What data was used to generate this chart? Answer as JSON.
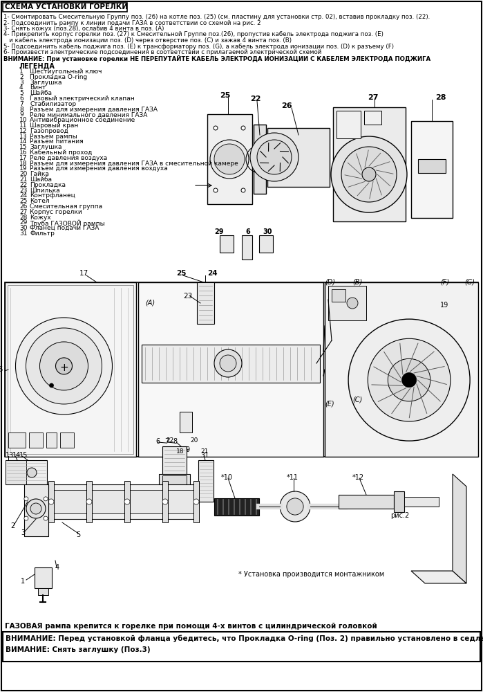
{
  "title_box": "СХЕМА УСТАНОВКИ ГОРЕЛКИ",
  "instructions": [
    "1- Смонтировать Смесительную Группу поз. (26) на котле поз. (25) (см. пластину для установки стр. 02), вставив прокладку поз. (22).",
    "2- Подсоединить рампу к линии подачи ГАЗА в соответствии со схемой на рис. 2",
    "3- Снять кожух (поз.28), ослабив 4 винта в поз. (А)",
    "4- Прикрепить корпус горелки поз. (27) к Смесительной Группе поз.(26), пропустив кабель электрода поджига поз. (Е)",
    "   и кабель электрода ионизации поз. (D) через отверстие поз. (С) и зажав 4 винта поз. (В)",
    "5- Подсоединить кабель поджига поз. (Е) к трансформатору поз. (G), а кабель электрода ионизации поз. (D) к разъему (F)",
    "6- Произвести электрические подсоединения в соответствии с прилагаемой электрической схемой",
    "ВНИМАНИЕ: При установке горелки НЕ ПЕРЕПУТАЙТЕ КАБЕЛЬ ЭЛЕКТРОДА ИОНИЗАЦИИ С КАБЕЛЕМ ЭЛЕКТРОДА ПОДЖИГА"
  ],
  "legend_title": "ЛЕГЕНДА",
  "legend_items": [
    [
      "1",
      "Шестиугольный ключ"
    ],
    [
      "2",
      "Прокладка O-ring"
    ],
    [
      "3",
      "Заглушка"
    ],
    [
      "4",
      "Винт"
    ],
    [
      "5",
      "Шайба"
    ],
    [
      "6",
      "Газовый электрический клапан"
    ],
    [
      "7",
      "Стабилизатор"
    ],
    [
      "8",
      "Разъем для измерения давления ГАЗА"
    ],
    [
      "9",
      "Реле минимального давления ГАЗА"
    ],
    [
      "10",
      "Антивибрационное соединение"
    ],
    [
      "11",
      "Шаровый кран"
    ],
    [
      "12",
      "Газопровод"
    ],
    [
      "13",
      "Разъем рампы"
    ],
    [
      "14",
      "Разъем питания"
    ],
    [
      "15",
      "Заглушка"
    ],
    [
      "16",
      "Кабельный проход"
    ],
    [
      "17",
      "Реле давления воздуха"
    ],
    [
      "18",
      "Разъем для измерения давления ГАЗА в смесительной камере"
    ],
    [
      "19",
      "Разъем для измерения давления воздуха"
    ],
    [
      "20",
      "Гайка"
    ],
    [
      "21",
      "Шайба"
    ],
    [
      "22",
      "Прокладка"
    ],
    [
      "23",
      "Шпилька"
    ],
    [
      "24",
      "Контрфланец"
    ],
    [
      "25",
      "Котел"
    ],
    [
      "26",
      "Смесительная группа"
    ],
    [
      "27",
      "Корпус горелки"
    ],
    [
      "28",
      "Кожух"
    ],
    [
      "29",
      "Труба ГАЗОВОЙ рампы"
    ],
    [
      "30",
      "Фланец подачи ГАЗА"
    ],
    [
      "31",
      "Фильтр"
    ]
  ],
  "bottom_text": "ГАЗОВАЯ рампа крепится к горелке при помощи 4-х винтов с цилиндрической головкой",
  "warning_line1": "ВНИМАНИЕ: Перед установкой фланца убедитесь, что Прокладка O-ring (Поз. 2) правильно установлено в седле",
  "warning_line2": "ВИМАНИЕ: Снять заглушку (Поз.3)",
  "installer_note": "* Установка производится монтажником",
  "bg_color": "#ffffff",
  "text_color": "#000000"
}
